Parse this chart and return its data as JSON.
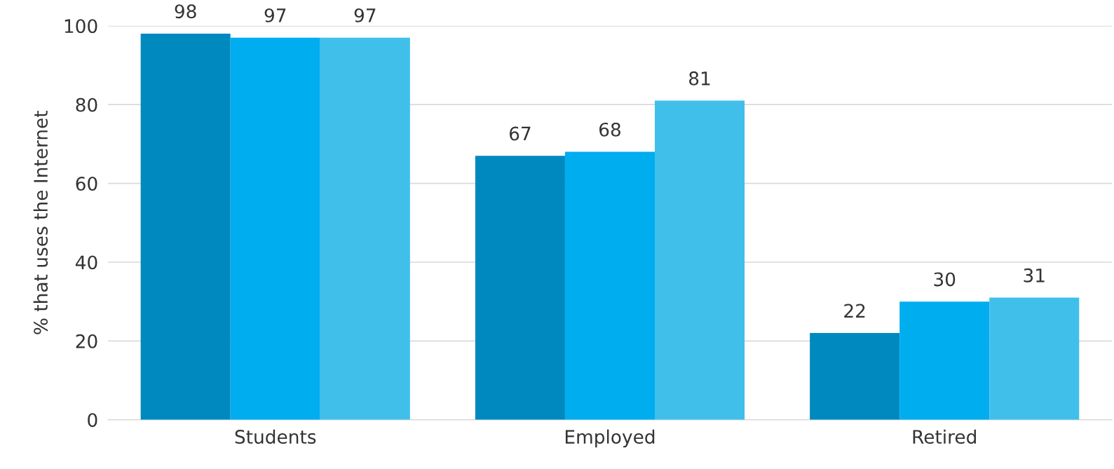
{
  "chart_data": {
    "type": "bar",
    "ylabel": "% that uses the Internet",
    "categories": [
      "Students",
      "Employed",
      "Retired"
    ],
    "series": [
      {
        "color": "#0089bf",
        "values": [
          98,
          67,
          22
        ]
      },
      {
        "color": "#00adee",
        "values": [
          97,
          68,
          30
        ]
      },
      {
        "color": "#40bfea",
        "values": [
          97,
          81,
          31
        ]
      }
    ],
    "ylim": [
      0,
      100
    ],
    "yticks": [
      0,
      20,
      40,
      60,
      80,
      100
    ],
    "grid": "y",
    "data_labels": true,
    "legend": false
  }
}
